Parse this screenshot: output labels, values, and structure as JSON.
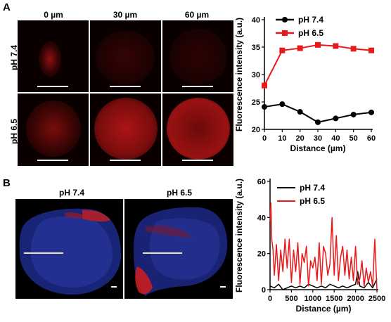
{
  "panel_a": {
    "letter": "A",
    "columns": [
      "0 µm",
      "30 µm",
      "60 µm"
    ],
    "rows": [
      "pH 7.4",
      "pH 6.5"
    ]
  },
  "panel_b": {
    "letter": "B",
    "columns": [
      "pH 7.4",
      "pH 6.5"
    ]
  },
  "chart_data": [
    {
      "type": "line",
      "title": "",
      "xlabel": "Distance (µm)",
      "ylabel": "Fluorescence intensity (a.u.)",
      "x": [
        0,
        10,
        20,
        30,
        40,
        50,
        60
      ],
      "xticks": [
        0,
        10,
        20,
        30,
        40,
        50,
        60
      ],
      "yticks": [
        20,
        25,
        30,
        35,
        40
      ],
      "xlim": [
        0,
        60
      ],
      "ylim": [
        20,
        40
      ],
      "legend_position": "top-left",
      "grid": false,
      "series": [
        {
          "name": "pH 7.4",
          "color": "#000000",
          "marker": "circle",
          "values": [
            24.1,
            24.6,
            23.2,
            21.3,
            22.0,
            22.7,
            23.1
          ]
        },
        {
          "name": "pH 6.5",
          "color": "#e8191b",
          "marker": "square",
          "values": [
            28.0,
            34.4,
            34.8,
            35.4,
            35.2,
            34.7,
            34.4
          ]
        }
      ]
    },
    {
      "type": "line",
      "title": "",
      "xlabel": "Distance (µm)",
      "ylabel": "Fluorescence intensity (a.u.)",
      "xticks": [
        0,
        500,
        1000,
        1500,
        2000,
        2500
      ],
      "yticks": [
        0,
        20,
        40,
        60
      ],
      "xlim": [
        0,
        2500
      ],
      "ylim": [
        0,
        60
      ],
      "legend_position": "top-right",
      "grid": false,
      "series": [
        {
          "name": "pH 7.4",
          "color": "#000000",
          "x": [
            0,
            100,
            200,
            300,
            400,
            500,
            600,
            700,
            800,
            900,
            1000,
            1100,
            1200,
            1300,
            1400,
            1500,
            1600,
            1700,
            1800,
            1900,
            2000,
            2050,
            2100,
            2200,
            2300,
            2400,
            2500
          ],
          "values": [
            2,
            1,
            3,
            0,
            1,
            2,
            1,
            2,
            1,
            3,
            2,
            1,
            2,
            1,
            3,
            2,
            1,
            2,
            1,
            2,
            3,
            10,
            2,
            1,
            4,
            1,
            6
          ]
        },
        {
          "name": "pH 6.5",
          "color": "#e8191b",
          "x": [
            0,
            20,
            40,
            70,
            100,
            150,
            200,
            250,
            300,
            350,
            400,
            450,
            500,
            550,
            600,
            650,
            700,
            750,
            800,
            850,
            900,
            950,
            1000,
            1050,
            1100,
            1150,
            1200,
            1250,
            1300,
            1350,
            1400,
            1450,
            1500,
            1550,
            1600,
            1650,
            1700,
            1750,
            1800,
            1850,
            1900,
            1950,
            2000,
            2050,
            2100,
            2150,
            2200,
            2250,
            2300,
            2350,
            2400,
            2450,
            2500
          ],
          "values": [
            38,
            48,
            28,
            22,
            8,
            25,
            5,
            22,
            10,
            28,
            12,
            28,
            4,
            22,
            10,
            26,
            3,
            20,
            15,
            24,
            2,
            16,
            12,
            18,
            5,
            26,
            3,
            24,
            20,
            8,
            14,
            40,
            8,
            30,
            5,
            18,
            24,
            8,
            22,
            6,
            18,
            5,
            24,
            3,
            6,
            16,
            2,
            12,
            4,
            10,
            2,
            28,
            0
          ]
        }
      ]
    }
  ]
}
